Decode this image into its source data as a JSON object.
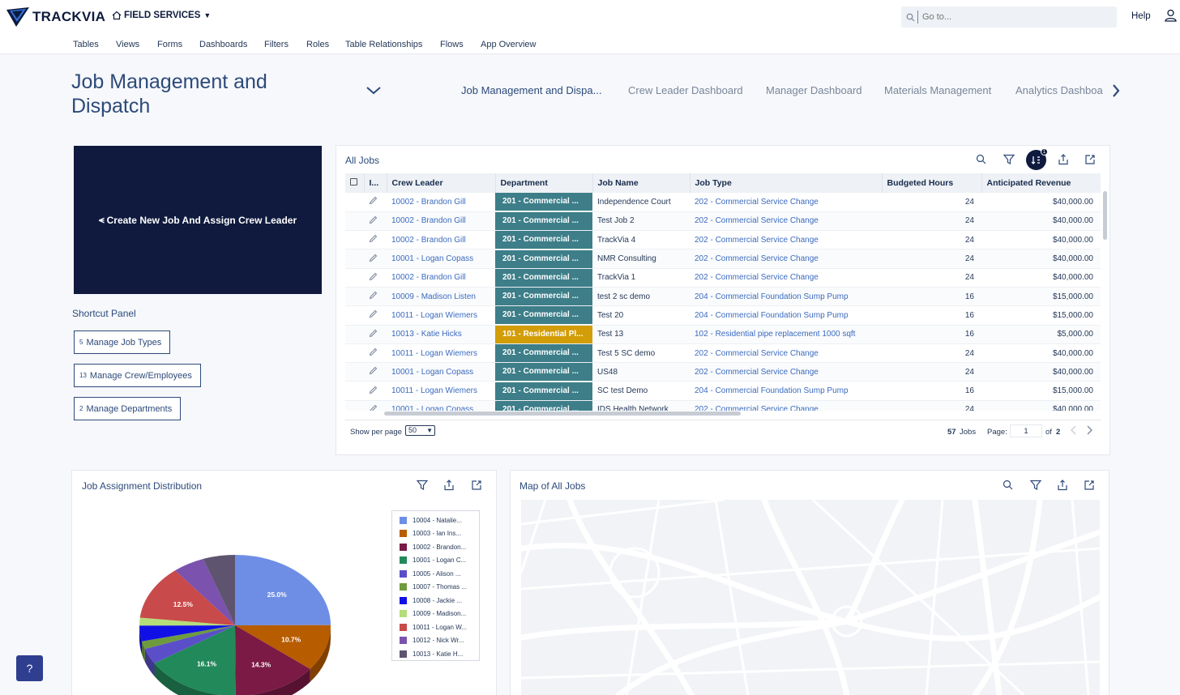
{
  "topbar": {
    "logo_text": "TRACKVIA",
    "app_name": "FIELD SERVICES",
    "search_placeholder": "Go to...",
    "help_label": "Help"
  },
  "menu": [
    "Tables",
    "Views",
    "Forms",
    "Dashboards",
    "Filters",
    "Roles",
    "Table Relationships",
    "Flows",
    "App Overview"
  ],
  "dashboard": {
    "title": "Job Management and Dispatch",
    "tabs": [
      "Job Management and Dispa...",
      "Crew Leader Dashboard",
      "Manager Dashboard",
      "Materials Management",
      "Analytics Dashboa"
    ]
  },
  "shortcuts": {
    "create_label": "Create New Job And Assign Crew Leader",
    "panel_title": "Shortcut Panel",
    "buttons": [
      {
        "count": "5",
        "label": "Manage Job Types"
      },
      {
        "count": "13",
        "label": "Manage Crew/Employees"
      },
      {
        "count": "2",
        "label": "Manage Departments"
      }
    ]
  },
  "jobs_table": {
    "title": "All Jobs",
    "sort_badge": "1",
    "columns": [
      "I...",
      "Crew Leader",
      "Department",
      "Job Name",
      "Job Type",
      "Budgeted Hours",
      "Anticipated Revenue"
    ],
    "rows": [
      {
        "crew": "10002 - Brandon Gill",
        "dept": "201 - Commercial ...",
        "name": "Independence Court",
        "type": "202 - Commercial Service Change",
        "hours": "24",
        "revenue": "$40,000.00"
      },
      {
        "crew": "10002 - Brandon Gill",
        "dept": "201 - Commercial ...",
        "name": "Test Job 2",
        "type": "202 - Commercial Service Change",
        "hours": "24",
        "revenue": "$40,000.00"
      },
      {
        "crew": "10002 - Brandon Gill",
        "dept": "201 - Commercial ...",
        "name": "TrackVia 4",
        "type": "202 - Commercial Service Change",
        "hours": "24",
        "revenue": "$40,000.00"
      },
      {
        "crew": "10001 - Logan Copass",
        "dept": "201 - Commercial ...",
        "name": "NMR Consulting",
        "type": "202 - Commercial Service Change",
        "hours": "24",
        "revenue": "$40,000.00"
      },
      {
        "crew": "10002 - Brandon Gill",
        "dept": "201 - Commercial ...",
        "name": "TrackVia 1",
        "type": "202 - Commercial Service Change",
        "hours": "24",
        "revenue": "$40,000.00"
      },
      {
        "crew": "10009 - Madison Listen",
        "dept": "201 - Commercial ...",
        "name": "test 2 sc demo",
        "type": "204 - Commercial Foundation Sump Pump",
        "hours": "16",
        "revenue": "$15,000.00"
      },
      {
        "crew": "10011 - Logan Wiemers",
        "dept": "201 - Commercial ...",
        "name": "Test 20",
        "type": "204 - Commercial Foundation Sump Pump",
        "hours": "16",
        "revenue": "$15,000.00"
      },
      {
        "crew": "10013 - Katie Hicks",
        "dept": "101 - Residential Pl...",
        "name": "Test 13",
        "type": "102 - Residential pipe replacement 1000 sqft",
        "hours": "16",
        "revenue": "$5,000.00"
      },
      {
        "crew": "10011 - Logan Wiemers",
        "dept": "201 - Commercial ...",
        "name": "Test 5 SC demo",
        "type": "202 - Commercial Service Change",
        "hours": "24",
        "revenue": "$40,000.00"
      },
      {
        "crew": "10001 - Logan Copass",
        "dept": "201 - Commercial ...",
        "name": "US48",
        "type": "202 - Commercial Service Change",
        "hours": "24",
        "revenue": "$40,000.00"
      },
      {
        "crew": "10011 - Logan Wiemers",
        "dept": "201 - Commercial ...",
        "name": "SC test Demo",
        "type": "204 - Commercial Foundation Sump Pump",
        "hours": "16",
        "revenue": "$15,000.00"
      },
      {
        "crew": "10001 - Logan Copass",
        "dept": "201 - Commercial ...",
        "name": "IDS Health Network",
        "type": "202 - Commercial Service Change",
        "hours": "24",
        "revenue": "$40,000.00"
      }
    ],
    "footer": {
      "per_page_label": "Show per page",
      "per_page_value": "50",
      "count": "57",
      "count_label": "Jobs",
      "page_label": "Page:",
      "page_value": "1",
      "of_label": "of",
      "total_pages": "2"
    }
  },
  "assignment_chart": {
    "title": "Job Assignment Distribution",
    "chart_data": {
      "type": "pie",
      "slices": [
        {
          "label": "10004 - Natalie...",
          "value": 25.0,
          "display": "25.0%",
          "color": "#6e8ee6"
        },
        {
          "label": "10003 - Ian Ins...",
          "value": 10.7,
          "display": "10.7%",
          "color": "#b85c00"
        },
        {
          "label": "10002 - Brandon...",
          "value": 14.3,
          "display": "14.3%",
          "color": "#7b1a45"
        },
        {
          "label": "10001 - Logan C...",
          "value": 16.1,
          "display": "16.1%",
          "color": "#22895a"
        },
        {
          "label": "10005 - Alison ...",
          "value": 3.6,
          "display": "",
          "color": "#5a4fc8"
        },
        {
          "label": "10007 - Thomas ...",
          "value": 1.8,
          "display": "",
          "color": "#6e9b3d"
        },
        {
          "label": "10008 - Jackie ...",
          "value": 3.6,
          "display": "",
          "color": "#1010e6"
        },
        {
          "label": "10009 - Madison...",
          "value": 1.8,
          "display": "",
          "color": "#b5dd7a"
        },
        {
          "label": "10011 - Logan W...",
          "value": 12.5,
          "display": "12.5%",
          "color": "#c94a4a"
        },
        {
          "label": "10012 - Nick Wr...",
          "value": 5.4,
          "display": "",
          "color": "#7b52ae"
        },
        {
          "label": "10013 - Katie H...",
          "value": 5.4,
          "display": "",
          "color": "#5e5470"
        }
      ]
    }
  },
  "map": {
    "title": "Map of All Jobs"
  },
  "help_button": "?"
}
